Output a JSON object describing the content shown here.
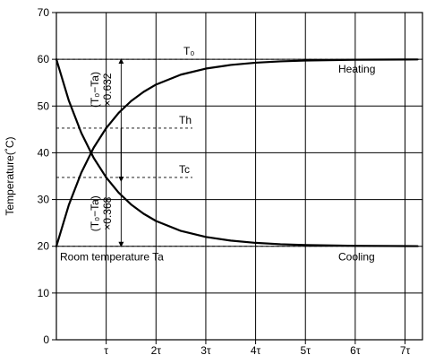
{
  "chart_data": {
    "type": "line",
    "xlabel": "",
    "ylabel": "Temperature(˚C)",
    "ylim": [
      0,
      70
    ],
    "xlim": [
      0,
      7.35
    ],
    "yticks": [
      0,
      10,
      20,
      30,
      40,
      50,
      60,
      70
    ],
    "xticks": [
      {
        "value": 1,
        "label": "τ"
      },
      {
        "value": 2,
        "label": "2τ"
      },
      {
        "value": 3,
        "label": "3τ"
      },
      {
        "value": 4,
        "label": "4τ"
      },
      {
        "value": 5,
        "label": "5τ"
      },
      {
        "value": 6,
        "label": "6τ"
      },
      {
        "value": 7,
        "label": "7τ"
      }
    ],
    "grid": true,
    "series": [
      {
        "name": "Heating",
        "x": [
          0,
          0.25,
          0.5,
          0.75,
          1,
          1.25,
          1.5,
          1.75,
          2,
          2.5,
          3,
          3.5,
          4,
          4.5,
          5,
          6,
          7,
          7.25
        ],
        "y": [
          20,
          28.85,
          35.74,
          41.11,
          45.28,
          48.53,
          51.06,
          53.03,
          54.59,
          56.72,
          58.01,
          58.79,
          59.27,
          59.56,
          59.73,
          59.9,
          59.96,
          59.97
        ]
      },
      {
        "name": "Cooling",
        "x": [
          0,
          0.25,
          0.5,
          0.75,
          1,
          1.25,
          1.5,
          1.75,
          2,
          2.5,
          3,
          3.5,
          4,
          4.5,
          5,
          6,
          7,
          7.25
        ],
        "y": [
          60,
          51.15,
          44.26,
          38.89,
          34.72,
          31.47,
          28.94,
          26.97,
          25.41,
          23.28,
          21.99,
          21.21,
          20.73,
          20.44,
          20.27,
          20.1,
          20.04,
          20.03
        ]
      }
    ],
    "reference_lines": [
      {
        "label": "T₀",
        "y": 60
      },
      {
        "label": "Th",
        "y": 45.28
      },
      {
        "label": "Tc",
        "y": 34.72
      },
      {
        "label": "Room temperature  Ta",
        "y": 20
      }
    ],
    "annotations": [
      {
        "label_top": "(T₀−Ta)",
        "label_bottom": "×0.632",
        "from": 20,
        "to": 60,
        "at_x": 1.3
      },
      {
        "label_top": "(T₀−Ta)",
        "label_bottom": "×0.368",
        "from": 20,
        "to": 34.72,
        "at_x": 1.3
      }
    ]
  }
}
